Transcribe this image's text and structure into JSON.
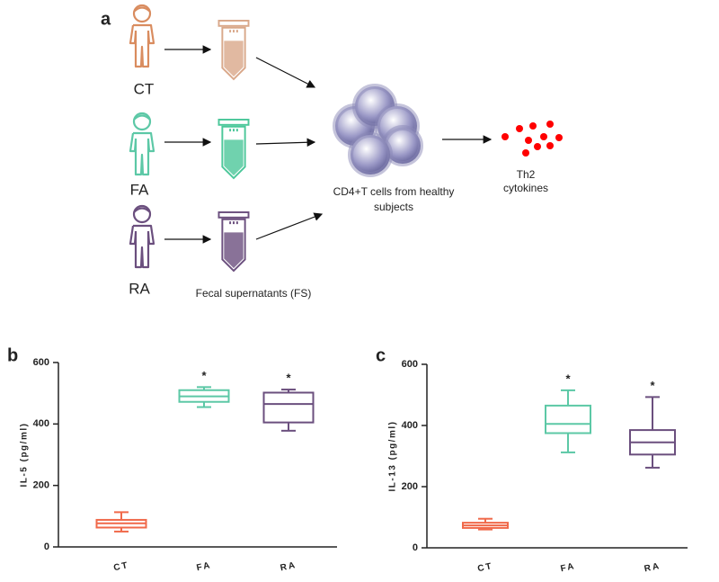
{
  "panel_labels": [
    "a",
    "b",
    "c"
  ],
  "diagram": {
    "groups": [
      "CT",
      "FA",
      "RA"
    ],
    "tube_caption": "Fecal supernatants (FS)",
    "cells_caption": [
      "CD4+T cells from healthy",
      "subjects"
    ],
    "output_caption": [
      "Th2",
      "cytokines"
    ]
  },
  "chart_data": [
    {
      "type": "box",
      "ylabel": "IL-5 (pg/ml)",
      "categories": [
        "CT",
        "FA",
        "RA"
      ],
      "colors": [
        "#f0694a",
        "#5cc8a6",
        "#6b4f7e"
      ],
      "boxes": [
        {
          "min": 50,
          "q1": 63,
          "median": 77,
          "q3": 88,
          "max": 113
        },
        {
          "min": 455,
          "q1": 472,
          "median": 490,
          "q3": 510,
          "max": 520
        },
        {
          "min": 378,
          "q1": 405,
          "median": 465,
          "q3": 502,
          "max": 512
        }
      ],
      "significance": [
        null,
        "*",
        "*"
      ],
      "ylim": [
        0,
        600
      ],
      "yticks": [
        0,
        200,
        400,
        600
      ]
    },
    {
      "type": "box",
      "ylabel": "IL-13 (pg/ml)",
      "categories": [
        "CT",
        "FA",
        "RA"
      ],
      "colors": [
        "#f0694a",
        "#5cc8a6",
        "#6b4f7e"
      ],
      "boxes": [
        {
          "min": 60,
          "q1": 65,
          "median": 73,
          "q3": 82,
          "max": 95
        },
        {
          "min": 312,
          "q1": 375,
          "median": 405,
          "q3": 465,
          "max": 515
        },
        {
          "min": 262,
          "q1": 305,
          "median": 345,
          "q3": 385,
          "max": 493
        }
      ],
      "significance": [
        null,
        "*",
        "*"
      ],
      "ylim": [
        0,
        600
      ],
      "yticks": [
        0,
        200,
        400,
        600
      ]
    }
  ]
}
